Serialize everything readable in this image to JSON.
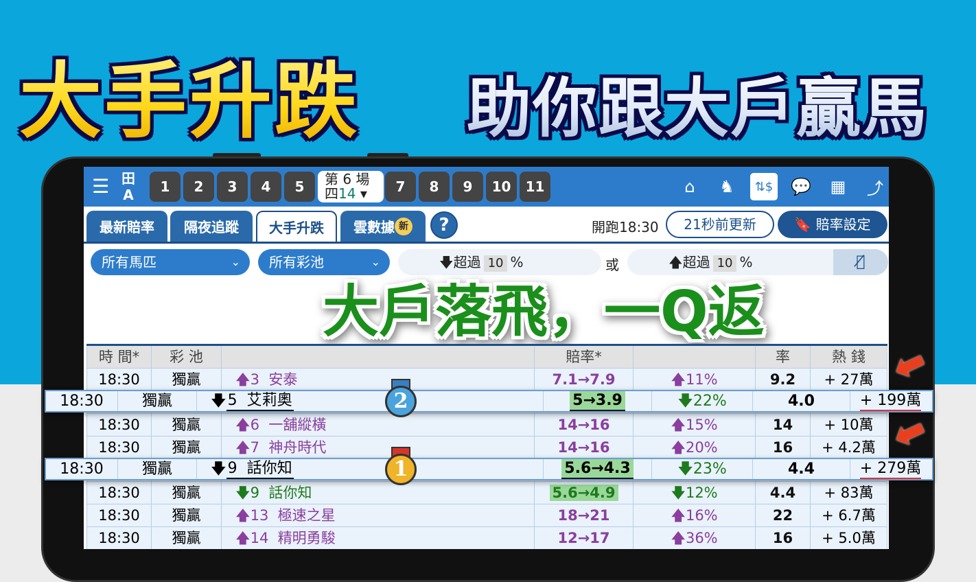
{
  "headline": {
    "main": "大手升跌",
    "sub": "助你跟大戶贏馬"
  },
  "overlay": "大戶落飛，一Q返",
  "topbar": {
    "menu_icon": "☰",
    "font_toggle": [
      "田",
      "A"
    ],
    "races": [
      "1",
      "2",
      "3",
      "4",
      "5",
      "7",
      "8",
      "9",
      "10",
      "11"
    ],
    "current_race": {
      "label": "第 6 場",
      "day": "四",
      "date": "14",
      "caret": "▾"
    },
    "icons": [
      "home-icon",
      "horse-icon",
      "odds-change-icon",
      "chat-icon",
      "table-icon",
      "chart-icon"
    ],
    "icon_glyphs": [
      "⌂",
      "♞",
      "⇅$",
      "💬",
      "▦",
      "⤴"
    ]
  },
  "tabs": [
    "最新賠率",
    "隔夜追蹤",
    "大手升跌",
    "雲數據"
  ],
  "tab_badge": "新",
  "active_tab": "大手升跌",
  "help": "?",
  "start_time": "開跑18:30",
  "updated": "21秒前更新",
  "odds_settings": "賠率設定",
  "filters": {
    "horses": "所有馬匹",
    "pools": "所有彩池",
    "down": {
      "label": "超過",
      "value": "10",
      "unit": "%"
    },
    "or": "或",
    "up": {
      "label": "超過",
      "value": "10",
      "unit": "%"
    }
  },
  "table": {
    "headers": [
      "時 間*",
      "彩 池",
      "",
      "賠率*",
      "",
      "率",
      "熱 錢"
    ],
    "rows": [
      {
        "time": "18:30",
        "pool": "獨贏",
        "dir": "up",
        "no": "3",
        "horse": "安泰",
        "odds": "7.1→7.9",
        "pct": "11%",
        "rate": "9.2",
        "money": "+ 27萬"
      },
      {
        "time": "18:30",
        "pool": "獨贏",
        "dir": "down",
        "no": "5",
        "horse": "艾莉奧",
        "odds": "5→3.9",
        "pct": "22%",
        "rate": "4.0",
        "money": "+ 199萬",
        "highlight": true,
        "rank": "2"
      },
      {
        "time": "18:30",
        "pool": "獨贏",
        "dir": "up",
        "no": "6",
        "horse": "一舖縱橫",
        "odds": "14→16",
        "pct": "15%",
        "rate": "14",
        "money": "+ 10萬"
      },
      {
        "time": "18:30",
        "pool": "獨贏",
        "dir": "up",
        "no": "7",
        "horse": "神舟時代",
        "odds": "14→16",
        "pct": "20%",
        "rate": "16",
        "money": "+ 4.2萬"
      },
      {
        "time": "18:30",
        "pool": "獨贏",
        "dir": "down",
        "no": "9",
        "horse": "話你知",
        "odds": "5.6→4.3",
        "pct": "23%",
        "rate": "4.4",
        "money": "+ 279萬",
        "highlight": true,
        "rank": "1"
      },
      {
        "time": "18:30",
        "pool": "獨贏",
        "dir": "down",
        "no": "9",
        "horse": "話你知",
        "odds": "5.6→4.9",
        "pct": "12%",
        "rate": "4.4",
        "money": "+ 83萬"
      },
      {
        "time": "18:30",
        "pool": "獨贏",
        "dir": "up",
        "no": "13",
        "horse": "極速之星",
        "odds": "18→21",
        "pct": "16%",
        "rate": "22",
        "money": "+ 6.7萬"
      },
      {
        "time": "18:30",
        "pool": "獨贏",
        "dir": "up",
        "no": "14",
        "horse": "精明勇駿",
        "odds": "12→17",
        "pct": "36%",
        "rate": "16",
        "money": "+ 5.0萬"
      }
    ]
  },
  "colors": {
    "up": "#8a3f9d",
    "down": "#1e7a1e",
    "bar": "#2d7ccc",
    "background": "#0aa6dc"
  }
}
